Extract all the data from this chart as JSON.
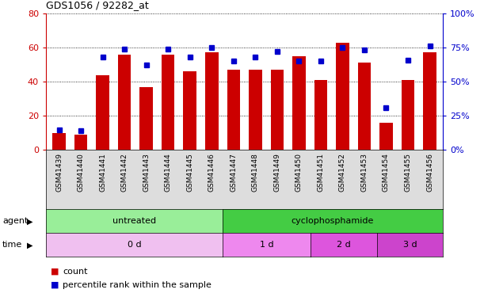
{
  "title": "GDS1056 / 92282_at",
  "samples": [
    "GSM41439",
    "GSM41440",
    "GSM41441",
    "GSM41442",
    "GSM41443",
    "GSM41444",
    "GSM41445",
    "GSM41446",
    "GSM41447",
    "GSM41448",
    "GSM41449",
    "GSM41450",
    "GSM41451",
    "GSM41452",
    "GSM41453",
    "GSM41454",
    "GSM41455",
    "GSM41456"
  ],
  "counts": [
    10,
    9,
    44,
    56,
    37,
    56,
    46,
    57,
    47,
    47,
    47,
    55,
    41,
    63,
    51,
    16,
    41,
    57
  ],
  "percentiles": [
    15,
    14,
    68,
    74,
    62,
    74,
    68,
    75,
    65,
    68,
    72,
    65,
    65,
    75,
    73,
    31,
    66,
    76
  ],
  "bar_color": "#cc0000",
  "dot_color": "#0000cc",
  "left_ylim": [
    0,
    80
  ],
  "right_ylim": [
    0,
    100
  ],
  "left_yticks": [
    0,
    20,
    40,
    60,
    80
  ],
  "right_yticks": [
    0,
    25,
    50,
    75,
    100
  ],
  "right_yticklabels": [
    "0%",
    "25%",
    "50%",
    "75%",
    "100%"
  ],
  "agent_untreated_label": "untreated",
  "agent_cycloph_label": "cyclophosphamide",
  "agent_untreated_color": "#99ee99",
  "agent_cycloph_color": "#44cc44",
  "time_0d_label": "0 d",
  "time_1d_label": "1 d",
  "time_2d_label": "2 d",
  "time_3d_label": "3 d",
  "time_color_0d": "#f0c0f0",
  "time_color_1d": "#ee88ee",
  "time_color_2d": "#dd55dd",
  "time_color_3d": "#cc44cc",
  "legend_count_label": "count",
  "legend_pct_label": "percentile rank within the sample",
  "left_axis_color": "#cc0000",
  "right_axis_color": "#0000cc",
  "xtick_bg_color": "#dddddd",
  "n_untreated": 8,
  "n_cyc_1d": 4,
  "n_cyc_2d": 3,
  "n_cyc_3d": 3
}
